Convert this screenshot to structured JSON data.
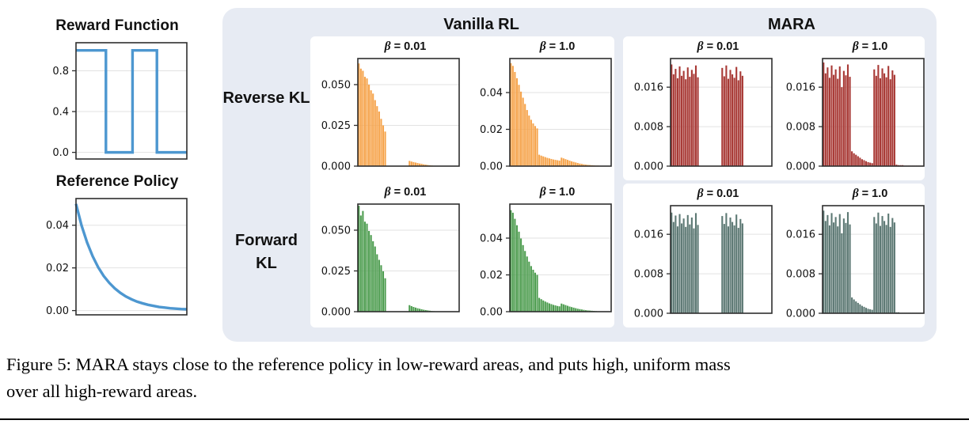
{
  "caption": {
    "line1": "Figure 5: MARA stays close to the reference policy in low-reward areas, and puts high, uniform mass",
    "line2": "over all high-reward areas."
  },
  "panel": {
    "groups": [
      {
        "label": "Vanilla RL"
      },
      {
        "label": "MARA"
      }
    ],
    "rows": [
      {
        "label": "Reverse KL"
      },
      {
        "label": "Forward KL"
      }
    ]
  },
  "colors": {
    "panel_background": "#E7EBF3",
    "reference_blue": "#4D97D0",
    "vanilla_reverse_orange": "#F6A44C",
    "vanilla_forward_green": "#4E9D50",
    "mara_reverse_red": "#A83935",
    "mara_forward_slate": "#5D7974"
  },
  "chart_data": [
    {
      "type": "line",
      "title": "Reward Function",
      "color": "#4D97D0",
      "ylim": [
        -0.065,
        1.075
      ],
      "yticks": [
        {
          "v": 0.0,
          "label": "0.0"
        },
        {
          "v": 0.4,
          "label": "0.4"
        },
        {
          "v": 0.8,
          "label": "0.8"
        }
      ],
      "x": [
        0,
        0.27,
        0.27,
        0.51,
        0.51,
        0.73,
        0.73,
        1.0
      ],
      "y": [
        1.0,
        1.0,
        0.0,
        0.0,
        1.0,
        1.0,
        0.0,
        0.0
      ]
    },
    {
      "type": "line",
      "title": "Reference Policy",
      "color": "#4D97D0",
      "ylim": [
        -0.002,
        0.0525
      ],
      "yticks": [
        {
          "v": 0.0,
          "label": "0.00"
        },
        {
          "v": 0.02,
          "label": "0.02"
        },
        {
          "v": 0.04,
          "label": "0.04"
        }
      ],
      "x": [
        0,
        0.05,
        0.1,
        0.15,
        0.2,
        0.25,
        0.3,
        0.35,
        0.4,
        0.45,
        0.5,
        0.55,
        0.6,
        0.65,
        0.7,
        0.75,
        0.8,
        0.85,
        0.9,
        0.95,
        1.0
      ],
      "y": [
        0.05,
        0.0399,
        0.0319,
        0.0255,
        0.0203,
        0.0162,
        0.013,
        0.0104,
        0.0083,
        0.0066,
        0.0053,
        0.0042,
        0.0034,
        0.0027,
        0.0022,
        0.0017,
        0.0014,
        0.0011,
        0.0009,
        0.0007,
        0.0006
      ]
    },
    {
      "type": "bar",
      "group": "Vanilla RL",
      "row": "Reverse KL",
      "title": "β = 0.01",
      "symbol": "β",
      "eq": "= 0.01",
      "color": "#F6A44C",
      "ylim": [
        0,
        0.066
      ],
      "yticks": [
        {
          "v": 0.0,
          "label": "0.000"
        },
        {
          "v": 0.025,
          "label": "0.025"
        },
        {
          "v": 0.05,
          "label": "0.050"
        }
      ],
      "values": [
        0.063,
        0.0598,
        0.0585,
        0.0548,
        0.0538,
        0.05,
        0.0465,
        0.0445,
        0.0405,
        0.0368,
        0.0335,
        0.029,
        0.025,
        0.0212,
        0,
        0,
        0,
        0,
        0,
        0,
        0,
        0,
        0,
        0,
        0,
        0.0032,
        0.0028,
        0.0025,
        0.0022,
        0.0019,
        0.0016,
        0.0014,
        0.0011,
        0.0009,
        0.0007,
        0.0005,
        0.0004,
        0.0002,
        0.0001,
        0.0001,
        0,
        0,
        0,
        0,
        0,
        0,
        0,
        0,
        0,
        0
      ]
    },
    {
      "type": "bar",
      "group": "Vanilla RL",
      "row": "Reverse KL",
      "title": "β = 1.0",
      "symbol": "β",
      "eq": "= 1.0",
      "color": "#F6A44C",
      "ylim": [
        0,
        0.0585
      ],
      "yticks": [
        {
          "v": 0.0,
          "label": "0.00"
        },
        {
          "v": 0.02,
          "label": "0.02"
        },
        {
          "v": 0.04,
          "label": "0.04"
        }
      ],
      "values": [
        0.056,
        0.0545,
        0.0512,
        0.0478,
        0.0442,
        0.0405,
        0.0372,
        0.0338,
        0.0305,
        0.0275,
        0.0252,
        0.0232,
        0.0218,
        0.0205,
        0.0062,
        0.0057,
        0.0053,
        0.0049,
        0.0045,
        0.0042,
        0.0039,
        0.0036,
        0.0034,
        0.0032,
        0.003,
        0.0046,
        0.0042,
        0.0038,
        0.0034,
        0.003,
        0.0026,
        0.0023,
        0.002,
        0.0017,
        0.0014,
        0.0012,
        0.001,
        0.0008,
        0.0007,
        0.0006,
        0.0005,
        0.0004,
        0.0003,
        0.0003,
        0.0002,
        0.0002,
        0.0001,
        0.0001,
        0.0001,
        0.0001
      ]
    },
    {
      "type": "bar",
      "group": "MARA",
      "row": "Reverse KL",
      "title": "β = 0.01",
      "symbol": "β",
      "eq": "= 0.01",
      "color": "#A83935",
      "ylim": [
        0,
        0.0218
      ],
      "yticks": [
        {
          "v": 0.0,
          "label": "0.000"
        },
        {
          "v": 0.008,
          "label": "0.008"
        },
        {
          "v": 0.016,
          "label": "0.016"
        }
      ],
      "values": [
        0.0206,
        0.0186,
        0.0197,
        0.0178,
        0.0202,
        0.0183,
        0.0193,
        0.0176,
        0.02,
        0.0181,
        0.0195,
        0.0187,
        0.0204,
        0.018,
        0,
        0,
        0,
        0,
        0,
        0,
        0,
        0,
        0,
        0,
        0,
        0.0199,
        0.0182,
        0.0204,
        0.0177,
        0.0195,
        0.0186,
        0.0179,
        0.0201,
        0.0174,
        0.0192,
        0.0183,
        0,
        0,
        0,
        0,
        0,
        0,
        0,
        0,
        0,
        0,
        0,
        0,
        0,
        0
      ]
    },
    {
      "type": "bar",
      "group": "MARA",
      "row": "Reverse KL",
      "title": "β = 1.0",
      "symbol": "β",
      "eq": "= 1.0",
      "color": "#A83935",
      "ylim": [
        0,
        0.0218
      ],
      "yticks": [
        {
          "v": 0.0,
          "label": "0.000"
        },
        {
          "v": 0.008,
          "label": "0.008"
        },
        {
          "v": 0.016,
          "label": "0.016"
        }
      ],
      "values": [
        0.021,
        0.0188,
        0.02,
        0.0179,
        0.0204,
        0.0185,
        0.0196,
        0.0177,
        0.0202,
        0.016,
        0.0193,
        0.0184,
        0.0206,
        0.0181,
        0.003,
        0.0026,
        0.0023,
        0.002,
        0.0017,
        0.0014,
        0.0012,
        0.001,
        0.0008,
        0.0007,
        0.0006,
        0.0196,
        0.0183,
        0.0205,
        0.0178,
        0.0198,
        0.0188,
        0.018,
        0.0203,
        0.0176,
        0.0194,
        0.0185,
        0.0003,
        0.0002,
        0.0002,
        0.0002,
        0.0001,
        0.0001,
        0.0001,
        0.0001,
        0.0001,
        0.0001,
        0.0001,
        0.0001,
        0.0001,
        0.0001
      ]
    },
    {
      "type": "bar",
      "group": "Vanilla RL",
      "row": "Forward KL",
      "title": "β = 0.01",
      "symbol": "β",
      "eq": "= 0.01",
      "color": "#4E9D50",
      "ylim": [
        0,
        0.066
      ],
      "yticks": [
        {
          "v": 0.0,
          "label": "0.000"
        },
        {
          "v": 0.025,
          "label": "0.025"
        },
        {
          "v": 0.05,
          "label": "0.050"
        }
      ],
      "values": [
        0.065,
        0.059,
        0.0618,
        0.0552,
        0.054,
        0.0495,
        0.047,
        0.0432,
        0.04,
        0.0352,
        0.0318,
        0.0285,
        0.0248,
        0.0205,
        0,
        0,
        0,
        0,
        0,
        0,
        0,
        0,
        0,
        0,
        0,
        0.004,
        0.0034,
        0.0029,
        0.0025,
        0.0021,
        0.0018,
        0.0015,
        0.0012,
        0.001,
        0.0008,
        0.0006,
        0.0004,
        0.0003,
        0.0002,
        0.0001,
        0,
        0,
        0,
        0,
        0,
        0,
        0,
        0,
        0,
        0
      ]
    },
    {
      "type": "bar",
      "group": "Vanilla RL",
      "row": "Forward KL",
      "title": "β = 1.0",
      "symbol": "β",
      "eq": "= 1.0",
      "color": "#4E9D50",
      "ylim": [
        0,
        0.0585
      ],
      "yticks": [
        {
          "v": 0.0,
          "label": "0.00"
        },
        {
          "v": 0.02,
          "label": "0.02"
        },
        {
          "v": 0.04,
          "label": "0.04"
        }
      ],
      "values": [
        0.0552,
        0.0538,
        0.0505,
        0.047,
        0.0435,
        0.0398,
        0.0362,
        0.033,
        0.03,
        0.0272,
        0.0248,
        0.0228,
        0.0212,
        0.02,
        0.0075,
        0.0068,
        0.0061,
        0.0055,
        0.005,
        0.0045,
        0.0041,
        0.0037,
        0.0034,
        0.0031,
        0.0029,
        0.0044,
        0.004,
        0.0036,
        0.0032,
        0.0028,
        0.0025,
        0.0022,
        0.0019,
        0.0016,
        0.0014,
        0.0012,
        0.001,
        0.0008,
        0.0007,
        0.0006,
        0.0005,
        0.0004,
        0.0003,
        0.0002,
        0.0002,
        0.0001,
        0.0001,
        0.0001,
        0,
        0
      ]
    },
    {
      "type": "bar",
      "group": "MARA",
      "row": "Forward KL",
      "title": "β = 0.01",
      "symbol": "β",
      "eq": "= 0.01",
      "color": "#5D7974",
      "ylim": [
        0,
        0.0218
      ],
      "yticks": [
        {
          "v": 0.0,
          "label": "0.000"
        },
        {
          "v": 0.008,
          "label": "0.008"
        },
        {
          "v": 0.016,
          "label": "0.016"
        }
      ],
      "values": [
        0.0204,
        0.0185,
        0.0198,
        0.0176,
        0.0201,
        0.0182,
        0.0192,
        0.0175,
        0.0199,
        0.018,
        0.0194,
        0.0172,
        0.0203,
        0.0179,
        0,
        0,
        0,
        0,
        0,
        0,
        0,
        0,
        0,
        0,
        0,
        0.0197,
        0.0181,
        0.0203,
        0.0176,
        0.0194,
        0.0185,
        0.0178,
        0.02,
        0.0173,
        0.0191,
        0.0182,
        0,
        0,
        0,
        0,
        0,
        0,
        0,
        0,
        0,
        0,
        0,
        0,
        0,
        0
      ]
    },
    {
      "type": "bar",
      "group": "MARA",
      "row": "Forward KL",
      "title": "β = 1.0",
      "symbol": "β",
      "eq": "= 1.0",
      "color": "#5D7974",
      "ylim": [
        0,
        0.0218
      ],
      "yticks": [
        {
          "v": 0.0,
          "label": "0.000"
        },
        {
          "v": 0.008,
          "label": "0.008"
        },
        {
          "v": 0.016,
          "label": "0.016"
        }
      ],
      "values": [
        0.0208,
        0.0187,
        0.0199,
        0.0178,
        0.0203,
        0.0184,
        0.0195,
        0.0176,
        0.0201,
        0.0162,
        0.0192,
        0.0183,
        0.0205,
        0.018,
        0.0032,
        0.0028,
        0.0024,
        0.0021,
        0.0018,
        0.0015,
        0.0013,
        0.0011,
        0.0009,
        0.0008,
        0.0007,
        0.0195,
        0.0182,
        0.0204,
        0.0177,
        0.0197,
        0.0187,
        0.0179,
        0.0202,
        0.0175,
        0.0193,
        0.0184,
        0.0002,
        0.0002,
        0.0001,
        0.0001,
        0.0001,
        0.0001,
        0.0001,
        0.0001,
        0.0001,
        0.0001,
        0.0001,
        0.0001,
        0.0001,
        0.0001
      ]
    }
  ]
}
